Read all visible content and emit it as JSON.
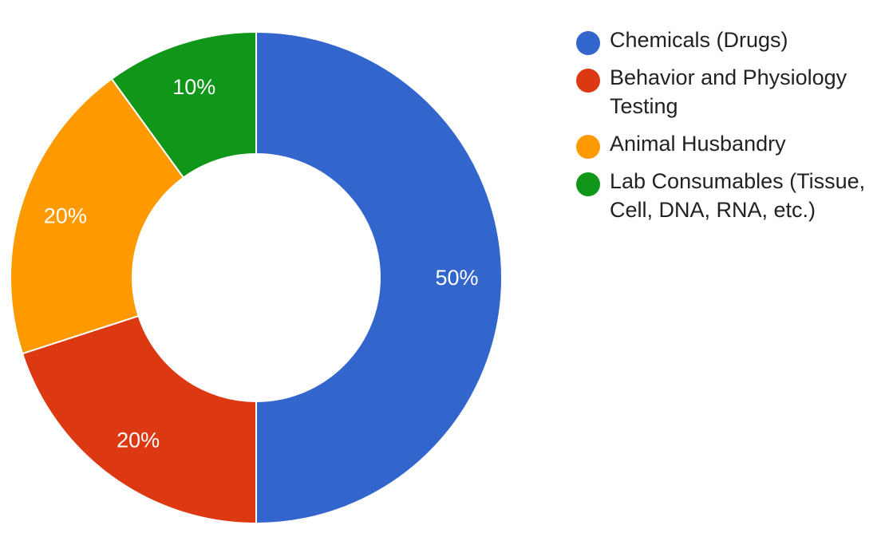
{
  "chart_data": {
    "type": "pie",
    "title": "",
    "labels": [
      "Chemicals (Drugs)",
      "Behavior and Physiology Testing",
      "Animal Husbandry",
      "Lab Consumables (Tissue, Cell, DNA, RNA, etc.)"
    ],
    "values": [
      50,
      20,
      20,
      10
    ],
    "value_labels": [
      "50%",
      "20%",
      "20%",
      "10%"
    ],
    "colors": [
      "#3366cc",
      "#dc3912",
      "#ff9900",
      "#109618"
    ],
    "style": "donut",
    "start_angle": "top, clockwise",
    "legend_position": "right"
  },
  "legend": {
    "items": [
      {
        "label_lines": [
          "Chemicals (Drugs)"
        ],
        "color": "#3366cc"
      },
      {
        "label_lines": [
          "Behavior and Physiology",
          "Testing"
        ],
        "color": "#dc3912"
      },
      {
        "label_lines": [
          "Animal Husbandry"
        ],
        "color": "#ff9900"
      },
      {
        "label_lines": [
          "Lab Consumables (Tissue,",
          "Cell, DNA, RNA, etc.)"
        ],
        "color": "#109618"
      }
    ]
  }
}
